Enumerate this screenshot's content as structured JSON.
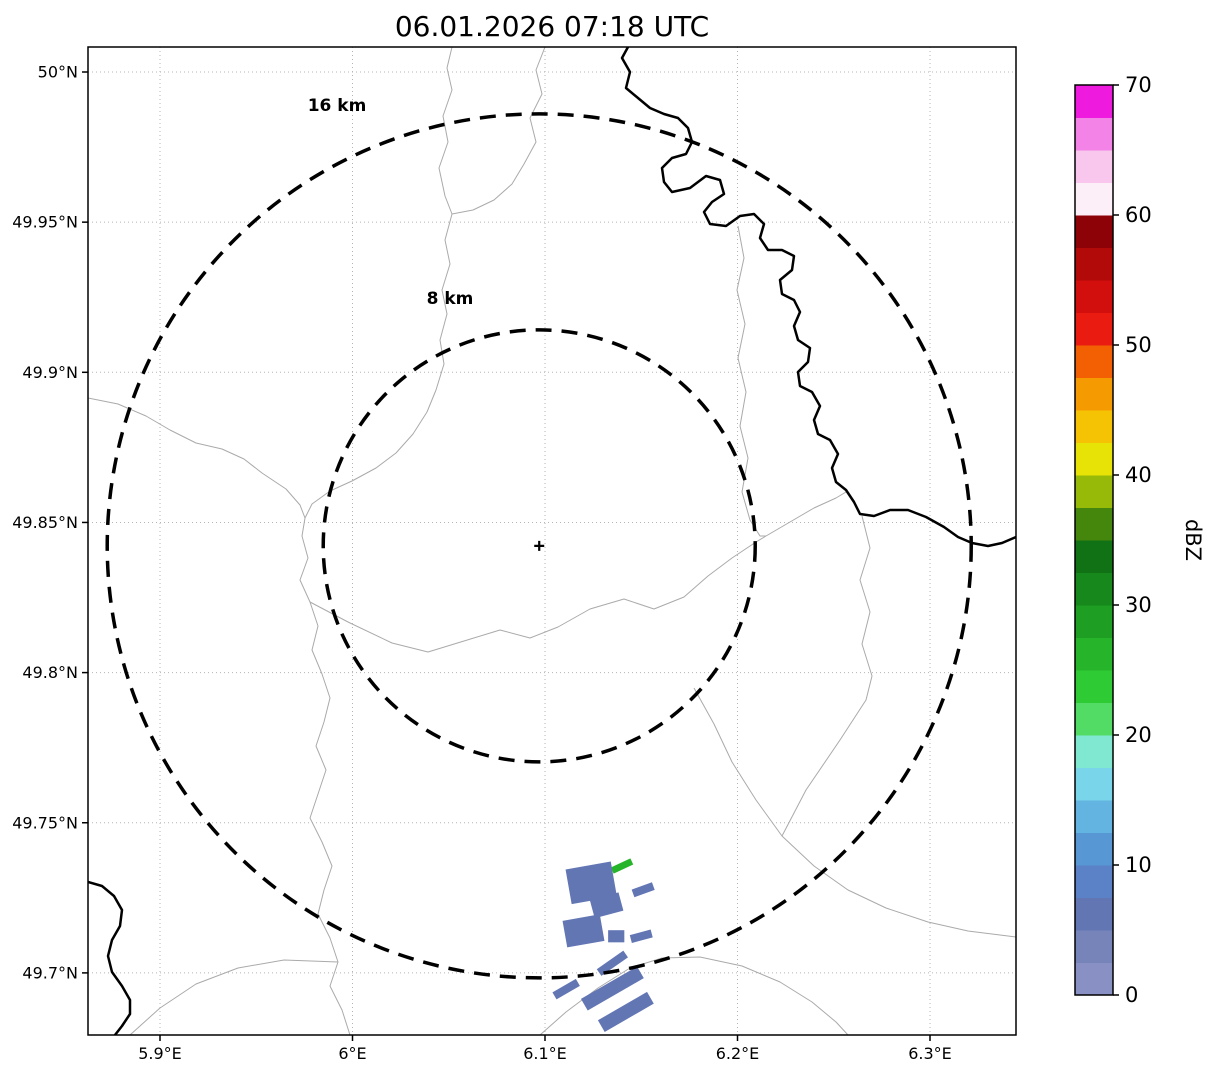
{
  "title": "06.01.2026 07:18 UTC",
  "chart_data": {
    "type": "heatmap",
    "title": "06.01.2026 07:18 UTC",
    "x_axis": {
      "range": [
        5.8626,
        6.3447
      ],
      "ticks": [
        {
          "value": 5.9,
          "label": "5.9°E"
        },
        {
          "value": 6.0,
          "label": "6°E"
        },
        {
          "value": 6.1,
          "label": "6.1°E"
        },
        {
          "value": 6.2,
          "label": "6.2°E"
        },
        {
          "value": 6.3,
          "label": "6.3°E"
        }
      ]
    },
    "y_axis": {
      "range": [
        49.6794,
        50.0083
      ],
      "ticks": [
        {
          "value": 50.0,
          "label": "50°N"
        },
        {
          "value": 49.95,
          "label": "49.95°N"
        },
        {
          "value": 49.9,
          "label": "49.9°N"
        },
        {
          "value": 49.85,
          "label": "49.85°N"
        },
        {
          "value": 49.8,
          "label": "49.8°N"
        },
        {
          "value": 49.75,
          "label": "49.75°N"
        },
        {
          "value": 49.7,
          "label": "49.7°N"
        }
      ]
    },
    "grid": "dotted",
    "radar_center": {
      "lon": 6.097,
      "lat": 49.8422,
      "marker": "+"
    },
    "range_rings": [
      {
        "radius_km": 8,
        "label": "8 km"
      },
      {
        "radius_km": 16,
        "label": "16 km"
      }
    ],
    "echoes": [
      {
        "lon": 6.14,
        "lat": 49.7356,
        "dbz": 26,
        "w_km": 0.8,
        "h_km": 0.25,
        "rot": -25
      },
      {
        "lon": 6.124,
        "lat": 49.73,
        "dbz": 6,
        "w_km": 1.7,
        "h_km": 1.3,
        "rot": -10
      },
      {
        "lon": 6.132,
        "lat": 49.7225,
        "dbz": 6,
        "w_km": 1.1,
        "h_km": 0.7,
        "rot": -15
      },
      {
        "lon": 6.151,
        "lat": 49.7277,
        "dbz": 6,
        "w_km": 0.8,
        "h_km": 0.3,
        "rot": -20
      },
      {
        "lon": 6.12,
        "lat": 49.714,
        "dbz": 6,
        "w_km": 1.4,
        "h_km": 1.0,
        "rot": -10
      },
      {
        "lon": 6.137,
        "lat": 49.7122,
        "dbz": 6,
        "w_km": 0.6,
        "h_km": 0.45,
        "rot": 0
      },
      {
        "lon": 6.15,
        "lat": 49.7122,
        "dbz": 6,
        "w_km": 0.8,
        "h_km": 0.3,
        "rot": -15
      },
      {
        "lon": 6.135,
        "lat": 49.7032,
        "dbz": 6,
        "w_km": 1.2,
        "h_km": 0.3,
        "rot": -35
      },
      {
        "lon": 6.135,
        "lat": 49.6948,
        "dbz": 6,
        "w_km": 2.4,
        "h_km": 0.5,
        "rot": -30
      },
      {
        "lon": 6.111,
        "lat": 49.6946,
        "dbz": 6,
        "w_km": 1.0,
        "h_km": 0.3,
        "rot": -30
      },
      {
        "lon": 6.142,
        "lat": 49.687,
        "dbz": 6,
        "w_km": 2.1,
        "h_km": 0.5,
        "rot": -30
      }
    ],
    "colorbar": {
      "label": "dBZ",
      "min": 0,
      "max": 70,
      "ticks": [
        0,
        10,
        20,
        30,
        40,
        50,
        60,
        70
      ],
      "bands": [
        {
          "from": 0,
          "to": 2.5,
          "color": "#8990c4"
        },
        {
          "from": 2.5,
          "to": 5,
          "color": "#7784ba"
        },
        {
          "from": 5,
          "to": 7.5,
          "color": "#6376b4"
        },
        {
          "from": 7.5,
          "to": 10,
          "color": "#5b82c6"
        },
        {
          "from": 10,
          "to": 12.5,
          "color": "#5697d4"
        },
        {
          "from": 12.5,
          "to": 15,
          "color": "#63b4e0"
        },
        {
          "from": 15,
          "to": 17.5,
          "color": "#79d5e9"
        },
        {
          "from": 17.5,
          "to": 20,
          "color": "#80e8d1"
        },
        {
          "from": 20,
          "to": 22.5,
          "color": "#52dc66"
        },
        {
          "from": 22.5,
          "to": 25,
          "color": "#2fcb34"
        },
        {
          "from": 25,
          "to": 27.5,
          "color": "#26b42a"
        },
        {
          "from": 27.5,
          "to": 30,
          "color": "#1e9e22"
        },
        {
          "from": 30,
          "to": 32.5,
          "color": "#17881b"
        },
        {
          "from": 32.5,
          "to": 35,
          "color": "#107214"
        },
        {
          "from": 35,
          "to": 37.5,
          "color": "#44870c"
        },
        {
          "from": 37.5,
          "to": 40,
          "color": "#97ba08"
        },
        {
          "from": 40,
          "to": 42.5,
          "color": "#e7e306"
        },
        {
          "from": 42.5,
          "to": 45,
          "color": "#f6c204"
        },
        {
          "from": 45,
          "to": 47.5,
          "color": "#f69a02"
        },
        {
          "from": 47.5,
          "to": 50,
          "color": "#f26003"
        },
        {
          "from": 50,
          "to": 52.5,
          "color": "#ea1b10"
        },
        {
          "from": 52.5,
          "to": 55,
          "color": "#d30f0d"
        },
        {
          "from": 55,
          "to": 57.5,
          "color": "#b20909"
        },
        {
          "from": 57.5,
          "to": 60,
          "color": "#8d0206"
        },
        {
          "from": 60,
          "to": 62.5,
          "color": "#fdeff8"
        },
        {
          "from": 62.5,
          "to": 65,
          "color": "#f9c6ee"
        },
        {
          "from": 65,
          "to": 67.5,
          "color": "#f483e7"
        },
        {
          "from": 67.5,
          "to": 70,
          "color": "#ee1bdf"
        }
      ]
    }
  }
}
